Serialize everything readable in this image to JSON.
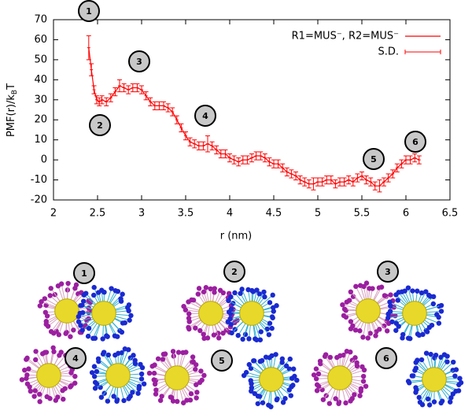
{
  "chart_data": {
    "type": "line",
    "xlabel": "r (nm)",
    "ylabel": {
      "main": "PMF(r)/k",
      "sub": "B",
      "tail": "T"
    },
    "x": [
      2.4,
      2.43,
      2.46,
      2.49,
      2.52,
      2.55,
      2.6,
      2.65,
      2.7,
      2.75,
      2.8,
      2.85,
      2.9,
      2.95,
      3.0,
      3.05,
      3.1,
      3.15,
      3.2,
      3.25,
      3.3,
      3.35,
      3.4,
      3.45,
      3.5,
      3.55,
      3.6,
      3.65,
      3.7,
      3.75,
      3.8,
      3.85,
      3.9,
      3.95,
      4.0,
      4.05,
      4.1,
      4.15,
      4.2,
      4.25,
      4.3,
      4.35,
      4.4,
      4.45,
      4.5,
      4.55,
      4.6,
      4.65,
      4.7,
      4.75,
      4.8,
      4.85,
      4.9,
      4.95,
      5.0,
      5.05,
      5.1,
      5.15,
      5.2,
      5.25,
      5.3,
      5.35,
      5.4,
      5.45,
      5.5,
      5.55,
      5.6,
      5.65,
      5.7,
      5.75,
      5.8,
      5.85,
      5.9,
      5.95,
      6.0,
      6.05,
      6.1,
      6.15
    ],
    "series": [
      {
        "name": "R1=MUS⁻, R2=MUS⁻",
        "color": "#ff0000",
        "values": [
          56,
          45,
          35,
          30,
          29,
          30,
          29,
          31,
          34,
          37,
          36,
          35,
          36,
          36,
          35,
          32,
          29,
          27,
          27,
          27,
          26,
          24,
          20,
          16,
          12,
          9,
          8,
          7,
          7,
          8,
          7,
          5,
          3,
          3,
          1,
          0,
          -1,
          0,
          0,
          1,
          2,
          2,
          1,
          -1,
          -2,
          -2,
          -4,
          -6,
          -7,
          -8,
          -10,
          -11,
          -12,
          -12,
          -11,
          -11,
          -10,
          -10,
          -12,
          -11,
          -11,
          -10,
          -11,
          -9,
          -8,
          -10,
          -11,
          -13,
          -13,
          -11,
          -9,
          -7,
          -4,
          -2,
          0,
          0,
          1,
          0
        ]
      }
    ],
    "errors": {
      "name": "S.D.",
      "color": "#ff0000",
      "values": [
        6,
        3,
        2,
        2,
        2,
        2,
        2,
        2,
        2,
        3,
        2,
        2,
        2,
        2,
        2,
        2,
        2,
        2,
        2,
        2,
        2,
        2,
        2,
        2,
        2,
        2,
        2,
        2,
        2,
        4,
        2,
        2,
        2,
        2,
        2,
        2,
        2,
        2,
        2,
        2,
        2,
        2,
        2,
        2,
        2,
        2,
        2,
        2,
        2,
        2,
        2,
        2,
        2,
        3,
        2,
        2,
        2,
        2,
        2,
        2,
        2,
        2,
        2,
        2,
        2,
        2,
        2,
        2,
        3,
        2,
        2,
        2,
        2,
        2,
        2,
        2,
        2,
        2
      ]
    },
    "xlim": [
      2,
      6.5
    ],
    "xticks": [
      2,
      2.5,
      3,
      3.5,
      4,
      4.5,
      5,
      5.5,
      6,
      6.5
    ],
    "ylim": [
      -20,
      70
    ],
    "yticks": [
      -20,
      -10,
      0,
      10,
      20,
      30,
      40,
      50,
      60,
      70
    ],
    "annotations": [
      "1",
      "2",
      "3",
      "4",
      "5",
      "6"
    ]
  },
  "snapshot_labels": [
    "1",
    "2",
    "3",
    "4",
    "5",
    "6"
  ]
}
